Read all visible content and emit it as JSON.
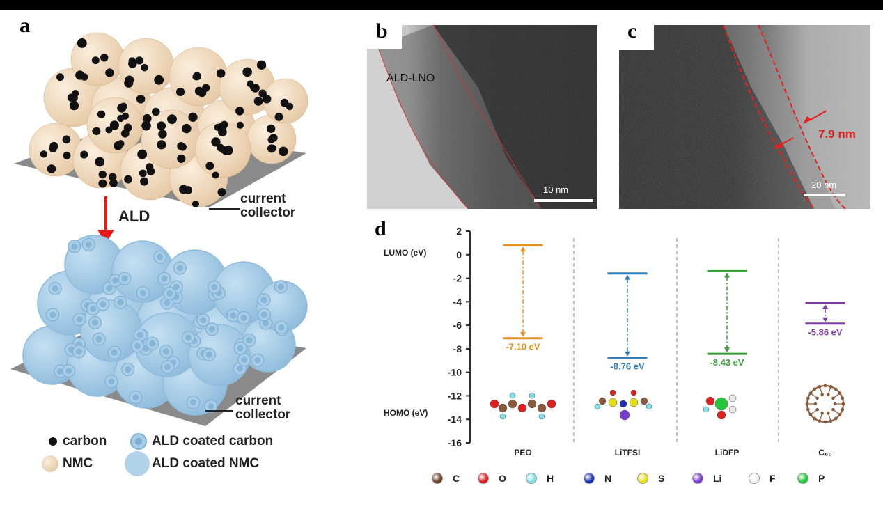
{
  "panel_letters": {
    "a": "a",
    "b": "b",
    "c": "c",
    "d": "d"
  },
  "panel_a": {
    "ald_label": "ALD",
    "current_collector_top": [
      "current",
      "collector"
    ],
    "current_collector_bottom": [
      "current",
      "collector"
    ],
    "legend": {
      "carbon": "carbon",
      "nmc": "NMC",
      "ald_carbon": "ALD coated carbon",
      "ald_nmc": "ALD coated NMC"
    },
    "colors": {
      "nmc": "#f3dcc0",
      "carbon": "#111111",
      "ald": "#a9cde6",
      "arrow": "#e01b1b"
    }
  },
  "panel_b": {
    "label": "ALD-LNO",
    "scale_bar": "10 nm"
  },
  "panel_c": {
    "thickness": "7.9 nm",
    "scale_bar": "20 nm"
  },
  "panel_d": {
    "lumo_label": "LUMO (eV)",
    "homo_label": "HOMO (eV)",
    "chart_data": {
      "type": "other",
      "ylim": [
        -16,
        2
      ],
      "yticks": [
        "2",
        "0",
        "-2",
        "-4",
        "-6",
        "-8",
        "-10",
        "-12",
        "-14",
        "-16"
      ],
      "series": [
        {
          "name": "PEO",
          "lumo": 0.8,
          "homo": -7.1,
          "homo_label": "-7.10 eV",
          "color": "#e8901a"
        },
        {
          "name": "LiTFSI",
          "lumo": -1.6,
          "homo": -8.76,
          "homo_label": "-8.76 eV",
          "color": "#2e7fc0"
        },
        {
          "name": "LiDFP",
          "lumo": -1.4,
          "homo": -8.43,
          "homo_label": "-8.43 eV",
          "color": "#3c9c3c"
        },
        {
          "name": "C₆₀",
          "lumo": -4.1,
          "homo": -5.86,
          "homo_label": "-5.86 eV",
          "color": "#7b3fa0"
        }
      ]
    },
    "atom_legend": [
      {
        "symbol": "C",
        "color": "#6b4226"
      },
      {
        "symbol": "O",
        "color": "#e02020"
      },
      {
        "symbol": "H",
        "color": "#7fe0e8"
      },
      {
        "symbol": "N",
        "color": "#1f2fb0"
      },
      {
        "symbol": "S",
        "color": "#e6e01a"
      },
      {
        "symbol": "Li",
        "color": "#7a3fd0"
      },
      {
        "symbol": "F",
        "color": "#f0f0f0"
      },
      {
        "symbol": "P",
        "color": "#22c83a"
      }
    ]
  }
}
